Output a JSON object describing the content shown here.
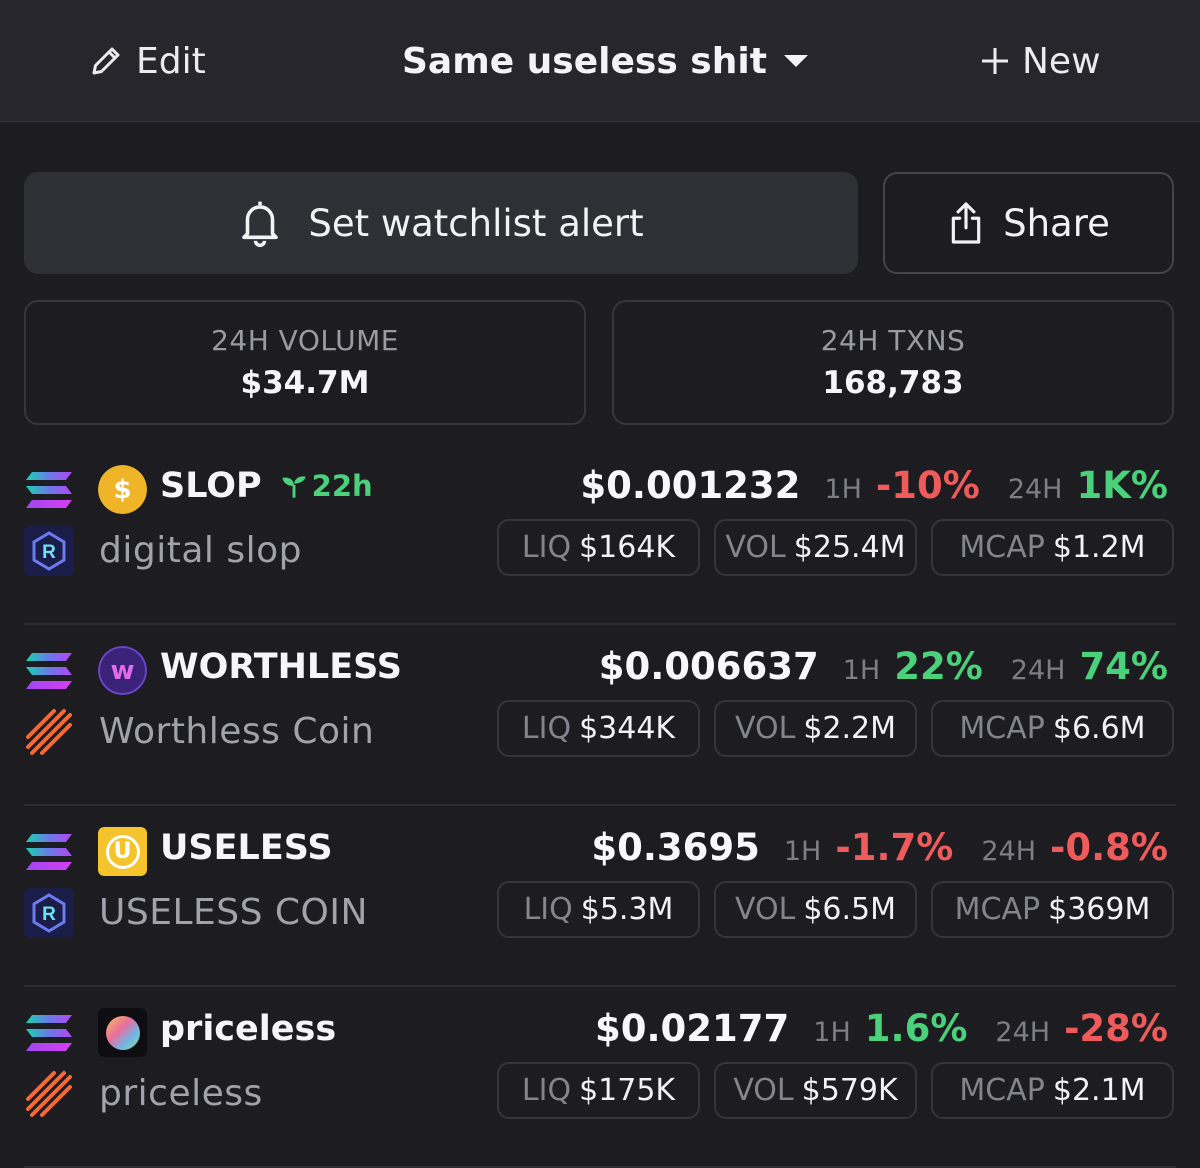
{
  "header": {
    "edit_label": "Edit",
    "watchlist_name": "Same useless shit",
    "new_label": "New"
  },
  "actions": {
    "alert_label": "Set watchlist alert",
    "share_label": "Share"
  },
  "stats": {
    "volume_label": "24H VOLUME",
    "volume_value": "$34.7M",
    "txns_label": "24H TXNS",
    "txns_value": "168,783"
  },
  "labels": {
    "tf_1h": "1H",
    "tf_24h": "24H",
    "liq": "LIQ",
    "vol": "VOL",
    "mcap": "MCAP"
  },
  "tokens": [
    {
      "symbol": "SLOP",
      "name": "digital slop",
      "age": "22h",
      "price": "$0.001232",
      "chg_1h": "-10%",
      "chg_24h": "1K%",
      "liq": "$164K",
      "vol": "$25.4M",
      "mcap": "$1.2M",
      "chain_icon": "solana-icon",
      "dex_icon": "raydium-icon",
      "token_icon": "slop-coin-icon"
    },
    {
      "symbol": "WORTHLESS",
      "name": "Worthless Coin",
      "price": "$0.006637",
      "chg_1h": "22%",
      "chg_24h": "74%",
      "liq": "$344K",
      "vol": "$2.2M",
      "mcap": "$6.6M",
      "chain_icon": "solana-icon",
      "dex_icon": "pumpswap-icon",
      "token_icon": "worthless-w-icon"
    },
    {
      "symbol": "USELESS",
      "name": "USELESS COIN",
      "price": "$0.3695",
      "chg_1h": "-1.7%",
      "chg_24h": "-0.8%",
      "liq": "$5.3M",
      "vol": "$6.5M",
      "mcap": "$369M",
      "chain_icon": "solana-icon",
      "dex_icon": "raydium-icon",
      "token_icon": "useless-u-icon"
    },
    {
      "symbol": "priceless",
      "name": "priceless",
      "price": "$0.02177",
      "chg_1h": "1.6%",
      "chg_24h": "-28%",
      "liq": "$175K",
      "vol": "$579K",
      "mcap": "$2.1M",
      "chain_icon": "solana-icon",
      "dex_icon": "pumpswap-icon",
      "token_icon": "priceless-orb-icon"
    }
  ],
  "colors": {
    "negative": "#ef5b5b",
    "positive": "#4ad17a",
    "background": "#1c1c21",
    "header": "#26262c"
  }
}
